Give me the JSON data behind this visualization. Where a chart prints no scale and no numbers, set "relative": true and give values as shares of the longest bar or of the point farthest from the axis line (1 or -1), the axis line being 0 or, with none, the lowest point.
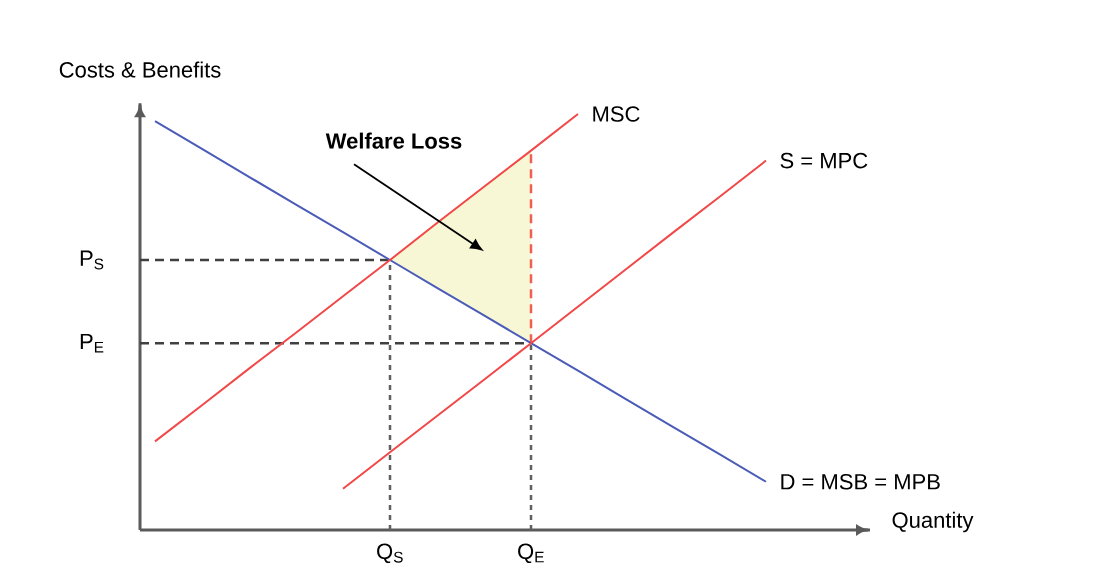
{
  "chart_data": {
    "type": "line",
    "relative": true,
    "xlabel": "Quantity",
    "ylabel": "Costs & Benefits",
    "categories": [
      null,
      null,
      null,
      null,
      null,
      "Q$_{S}$",
      null,
      null,
      "Q$_{E}$",
      null,
      null,
      null,
      null,
      null
    ],
    "series": [
      {
        "type": "area",
        "values": [
          null,
          null,
          null,
          null,
          null,
          0.649,
          0.738,
          0.825,
          0.912,
          null,
          null,
          null,
          null,
          null
        ],
        "color": "#f7f7d6"
      },
      {
        "name": "D = MSB = MPB",
        "values": [
          0.983,
          0.916,
          0.849,
          0.782,
          0.716,
          0.649,
          0.582,
          0.516,
          0.449,
          0.383,
          0.316,
          0.249,
          0.183,
          0.116
        ],
        "color": "#4a5cb8"
      },
      {
        "name": "MSC",
        "values": [
          0.213,
          0.3,
          0.388,
          0.474,
          0.562,
          0.649,
          0.738,
          0.825,
          0.912,
          1.0,
          null,
          null,
          null,
          null
        ],
        "color": "#f24848"
      },
      {
        "name": "S = MPC",
        "values": [
          null,
          null,
          null,
          null,
          0.099,
          0.187,
          0.274,
          0.361,
          0.449,
          0.537,
          0.625,
          0.713,
          0.8,
          0.888
        ],
        "color": "#f24848"
      }
    ],
    "ref_lines": [
      {
        "axis": "y",
        "value": 0.649,
        "label": "P$_{S}$",
        "line_style": "dashed",
        "color": "#404040"
      },
      {
        "axis": "y",
        "value": 0.449,
        "label": "P$_{E}$",
        "line_style": "dashed",
        "color": "#404040"
      },
      {
        "axis": "x",
        "value": "Q$_{S}$",
        "line_style": "dotted",
        "color": "#606060"
      },
      {
        "axis": "x",
        "value": "Q$_{E}$",
        "line_style": "dotted",
        "color": "#606060"
      },
      {
        "axis": "x",
        "value": "Q$_{E}$",
        "line_style": "dashed",
        "color": "#f06050"
      }
    ],
    "annotations": [
      "Welfare Loss"
    ]
  }
}
